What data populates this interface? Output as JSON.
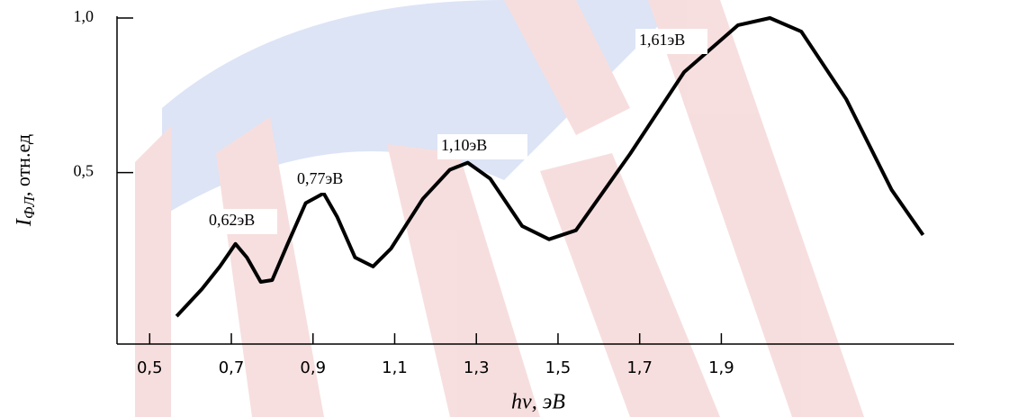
{
  "chart_data": {
    "type": "line",
    "x_label": "hν, эB",
    "y_label": {
      "symbol": "I",
      "subscript": "ФЛ",
      "unit": ", отн.ед"
    },
    "x": [
      0.566,
      0.628,
      0.672,
      0.71,
      0.738,
      0.772,
      0.8,
      0.838,
      0.882,
      0.926,
      0.959,
      1.003,
      1.047,
      1.091,
      1.169,
      1.235,
      1.279,
      1.334,
      1.412,
      1.478,
      1.544,
      1.677,
      1.809,
      1.941,
      2.019,
      2.096,
      2.206,
      2.317,
      2.394
    ],
    "series": [
      {
        "color": "#000000",
        "values": [
          0.035,
          0.123,
          0.196,
          0.269,
          0.225,
          0.146,
          0.152,
          0.269,
          0.401,
          0.433,
          0.357,
          0.225,
          0.196,
          0.254,
          0.415,
          0.509,
          0.532,
          0.48,
          0.327,
          0.284,
          0.313,
          0.561,
          0.825,
          0.977,
          1.0,
          0.956,
          0.737,
          0.444,
          0.298
        ]
      }
    ],
    "annotations": [
      "0,62эВ",
      "0,77эВ",
      "1,10эВ",
      "1,61эВ"
    ],
    "xlim": [
      0.42,
      2.47
    ],
    "ylim": [
      -0.055,
      1.0
    ],
    "xticks": [
      {
        "value": 0.5,
        "label": "0,5"
      },
      {
        "value": 0.7,
        "label": "0,7"
      },
      {
        "value": 0.9,
        "label": "0,9"
      },
      {
        "value": 1.1,
        "label": "1,1"
      },
      {
        "value": 1.3,
        "label": "1,3"
      },
      {
        "value": 1.5,
        "label": "1,5"
      },
      {
        "value": 1.7,
        "label": "1,7"
      },
      {
        "value": 1.9,
        "label": "1,9"
      }
    ],
    "yticks": [
      {
        "value": 0.5,
        "label": "0,5"
      },
      {
        "value": 1,
        "label": "1,0"
      }
    ]
  }
}
